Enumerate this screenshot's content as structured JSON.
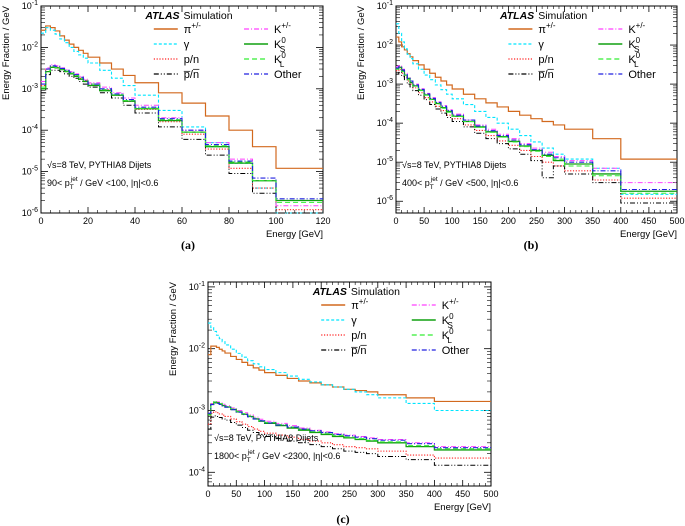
{
  "figure": {
    "y_axis_label": "Energy Fraction / GeV",
    "x_axis_label": "Energy [GeV]",
    "atlas_bold": "ATLAS",
    "atlas_rest": "Simulation",
    "energy_label": "√s=8 TeV, PYTHIA8 Dijets",
    "colors": {
      "pi": "#d2691e",
      "gamma": "#00e5ff",
      "pn": "#ff2020",
      "pnbar": "#000000",
      "kpm": "#ff40ff",
      "ks": "#10a010",
      "kl": "#33ee33",
      "other": "#2020e0"
    },
    "legend": [
      {
        "key": "pi",
        "label": "π+/-",
        "main": "π",
        "sup": "+/-",
        "sub": ""
      },
      {
        "key": "gamma",
        "label": "γ",
        "main": "γ",
        "sup": "",
        "sub": ""
      },
      {
        "key": "pn",
        "label": "p/n",
        "main": "p/n",
        "sup": "",
        "sub": ""
      },
      {
        "key": "pnbar",
        "label": "p̅/n̅",
        "main": "p̅/n̅",
        "sup": "",
        "sub": ""
      },
      {
        "key": "kpm",
        "label": "K+/-",
        "main": "K",
        "sup": "+/-",
        "sub": ""
      },
      {
        "key": "ks",
        "label": "K0S",
        "main": "K",
        "sup": "0",
        "sub": "S"
      },
      {
        "key": "kl",
        "label": "K0L",
        "main": "K",
        "sup": "0",
        "sub": "L"
      },
      {
        "key": "other",
        "label": "Other",
        "main": "Other",
        "sup": "",
        "sub": ""
      }
    ]
  },
  "chart_data": [
    {
      "panel_label": "(a)",
      "type": "line",
      "style": "step",
      "title": "ATLAS Simulation",
      "cut_label": "90< pT jet / GeV <100, |η|<0.6",
      "cut_pre": "90< p",
      "cut_mid": " / GeV <100, |η|<0.6",
      "xlabel": "Energy [GeV]",
      "ylabel": "Energy Fraction / GeV",
      "xlim": [
        0,
        120
      ],
      "ylim": [
        1e-06,
        0.1
      ],
      "yscale": "log",
      "x_ticks": [
        0,
        20,
        40,
        60,
        80,
        100,
        120
      ],
      "y_ticks": [
        -6,
        -5,
        -4,
        -3,
        -2,
        -1
      ],
      "bin_edges": [
        0,
        2,
        4,
        6,
        8,
        10,
        12,
        14,
        16,
        18,
        20,
        25,
        30,
        35,
        40,
        50,
        60,
        70,
        80,
        90,
        100,
        120
      ],
      "series": [
        {
          "key": "pi",
          "name": "π+/-",
          "values": [
            0.026,
            0.033,
            0.03,
            0.025,
            0.019,
            0.015,
            0.012,
            0.01,
            0.0085,
            0.0072,
            0.0058,
            0.0042,
            0.003,
            0.0021,
            0.0014,
            0.0008,
            0.00045,
            0.00022,
            0.0001,
            4e-05,
            1.2e-05
          ]
        },
        {
          "key": "gamma",
          "name": "γ",
          "values": [
            0.022,
            0.03,
            0.026,
            0.021,
            0.016,
            0.013,
            0.01,
            0.008,
            0.0066,
            0.0055,
            0.0042,
            0.0028,
            0.0018,
            0.0012,
            0.0007,
            0.0003,
            0.00012,
            5e-05,
            1.6e-05,
            4e-06,
            9e-07
          ]
        },
        {
          "key": "pn",
          "name": "p/n",
          "values": [
            0.0012,
            0.003,
            0.0035,
            0.0033,
            0.003,
            0.0027,
            0.0024,
            0.0021,
            0.0018,
            0.0016,
            0.0013,
            0.00095,
            0.0007,
            0.0005,
            0.00032,
            0.00016,
            8e-05,
            3.5e-05,
            1.2e-05,
            4e-06,
            1.2e-06
          ]
        },
        {
          "key": "pnbar",
          "name": "p̅/n̅",
          "values": [
            0.0008,
            0.0022,
            0.0028,
            0.0028,
            0.0026,
            0.0023,
            0.002,
            0.0018,
            0.0015,
            0.0013,
            0.0011,
            0.0008,
            0.0006,
            0.0004,
            0.00026,
            0.00012,
            6e-05,
            2.5e-05,
            9e-06,
            3e-06,
            7e-07
          ]
        },
        {
          "key": "kpm",
          "name": "K+/-",
          "values": [
            0.0015,
            0.0032,
            0.0038,
            0.0036,
            0.0032,
            0.0029,
            0.0026,
            0.0023,
            0.002,
            0.0017,
            0.0014,
            0.0011,
            0.0008,
            0.0006,
            0.0004,
            0.0002,
            0.0001,
            5e-05,
            2e-05,
            6e-06,
            1.5e-06
          ]
        },
        {
          "key": "ks",
          "name": "K0S",
          "values": [
            0.001,
            0.0026,
            0.0033,
            0.0032,
            0.0029,
            0.0026,
            0.0023,
            0.002,
            0.0017,
            0.0015,
            0.0012,
            0.0009,
            0.0007,
            0.0005,
            0.00033,
            0.00017,
            9e-05,
            4e-05,
            1.6e-05,
            6e-06,
            2e-06
          ]
        },
        {
          "key": "kl",
          "name": "K0L",
          "values": [
            0.0011,
            0.0027,
            0.0034,
            0.0033,
            0.003,
            0.0027,
            0.0024,
            0.0021,
            0.0018,
            0.0016,
            0.0013,
            0.00095,
            0.00072,
            0.00052,
            0.00034,
            0.00018,
            9e-05,
            4.2e-05,
            1.7e-05,
            6e-06,
            1.8e-06
          ]
        },
        {
          "key": "other",
          "name": "Other",
          "values": [
            0.0013,
            0.003,
            0.0036,
            0.0035,
            0.0031,
            0.0028,
            0.0025,
            0.0022,
            0.0019,
            0.0016,
            0.0013,
            0.001,
            0.00075,
            0.00055,
            0.00036,
            0.00019,
            0.0001,
            4.5e-05,
            1.8e-05,
            7e-06,
            2.2e-06
          ]
        }
      ]
    },
    {
      "panel_label": "(b)",
      "type": "line",
      "style": "step",
      "title": "ATLAS Simulation",
      "cut_label": "400< pT jet / GeV <500, |η|<0.6",
      "cut_pre": "400< p",
      "cut_mid": " / GeV <500, |η|<0.6",
      "xlabel": "Energy [GeV]",
      "ylabel": "Energy Fraction / GeV",
      "xlim": [
        0,
        500
      ],
      "ylim": [
        5e-07,
        0.1
      ],
      "yscale": "log",
      "x_ticks": [
        0,
        50,
        100,
        150,
        200,
        250,
        300,
        350,
        400,
        450,
        500
      ],
      "y_ticks": [
        -6,
        -5,
        -4,
        -3,
        -2,
        -1
      ],
      "bin_edges": [
        0,
        5,
        10,
        15,
        20,
        25,
        30,
        40,
        50,
        60,
        70,
        80,
        90,
        100,
        120,
        140,
        160,
        180,
        200,
        220,
        240,
        260,
        280,
        300,
        350,
        400,
        500
      ],
      "series": [
        {
          "key": "pi",
          "name": "π+/-",
          "values": [
            0.016,
            0.012,
            0.009,
            0.0075,
            0.006,
            0.005,
            0.004,
            0.0031,
            0.0024,
            0.0019,
            0.0015,
            0.0012,
            0.00095,
            0.00075,
            0.00055,
            0.00042,
            0.00033,
            0.00026,
            0.0002,
            0.00016,
            0.00013,
            0.00011,
            9e-05,
            7e-05,
            4e-05,
            1.2e-05
          ]
        },
        {
          "key": "gamma",
          "name": "γ",
          "values": [
            0.035,
            0.02,
            0.012,
            0.008,
            0.0058,
            0.0045,
            0.0033,
            0.0024,
            0.0017,
            0.0013,
            0.00095,
            0.00072,
            0.00055,
            0.00042,
            0.0003,
            0.0002,
            0.00014,
            0.0001,
            7e-05,
            4.8e-05,
            3.3e-05,
            2.3e-05,
            1.6e-05,
            1.2e-05,
            7e-06,
            1.5e-06
          ]
        },
        {
          "key": "pn",
          "name": "p/n",
          "values": [
            0.0022,
            0.0024,
            0.0019,
            0.0015,
            0.0012,
            0.001,
            0.0008,
            0.0006,
            0.00045,
            0.00035,
            0.00027,
            0.00021,
            0.00016,
            0.00013,
            9e-05,
            6.5e-05,
            4.8e-05,
            3.5e-05,
            2.7e-05,
            2e-05,
            1.4e-05,
            1e-05,
            8e-06,
            6e-06,
            3.5e-06,
            1.2e-06
          ]
        },
        {
          "key": "pnbar",
          "name": "p̅/n̅",
          "values": [
            0.0018,
            0.002,
            0.0016,
            0.0013,
            0.001,
            0.00085,
            0.00068,
            0.00052,
            0.0004,
            0.0003,
            0.00023,
            0.00018,
            0.00014,
            0.00011,
            8e-05,
            5.5e-05,
            4e-05,
            3e-05,
            2.2e-05,
            1.6e-05,
            1.1e-05,
            4e-06,
            8e-06,
            5e-06,
            3e-06,
            9e-07
          ]
        },
        {
          "key": "kpm",
          "name": "K+/-",
          "values": [
            0.0028,
            0.003,
            0.0024,
            0.0019,
            0.0015,
            0.0012,
            0.001,
            0.00076,
            0.00058,
            0.00045,
            0.00035,
            0.00028,
            0.00022,
            0.00017,
            0.00012,
            9e-05,
            7e-05,
            5.2e-05,
            4e-05,
            3e-05,
            2.3e-05,
            1.8e-05,
            1.4e-05,
            1.1e-05,
            7e-06,
            3e-06
          ]
        },
        {
          "key": "ks",
          "name": "K0S",
          "values": [
            0.0025,
            0.0027,
            0.0022,
            0.0017,
            0.0014,
            0.0011,
            0.0009,
            0.0007,
            0.00053,
            0.00041,
            0.00032,
            0.00025,
            0.0002,
            0.00015,
            0.00011,
            8e-05,
            6e-05,
            4.5e-05,
            3.4e-05,
            2.6e-05,
            2e-05,
            1.5e-05,
            1.1e-05,
            9e-06,
            5e-06,
            1.8e-06
          ]
        },
        {
          "key": "kl",
          "name": "K0L",
          "values": [
            0.0024,
            0.0026,
            0.0021,
            0.0017,
            0.0013,
            0.0011,
            0.00088,
            0.00068,
            0.00052,
            0.0004,
            0.00031,
            0.00024,
            0.00019,
            0.00015,
            0.00011,
            7.8e-05,
            5.8e-05,
            4.4e-05,
            3.3e-05,
            2.5e-05,
            1.9e-05,
            1.4e-05,
            1.2e-05,
            8e-06,
            4.5e-06,
            1.6e-06
          ]
        },
        {
          "key": "other",
          "name": "Other",
          "values": [
            0.0026,
            0.0028,
            0.0023,
            0.0018,
            0.0014,
            0.0012,
            0.00095,
            0.00073,
            0.00056,
            0.00043,
            0.00034,
            0.00027,
            0.00021,
            0.00016,
            0.00012,
            8.5e-05,
            6.4e-05,
            4.8e-05,
            3.7e-05,
            2.8e-05,
            2.1e-05,
            1.6e-05,
            1.3e-05,
            1e-05,
            6e-06,
            2e-06
          ]
        }
      ]
    },
    {
      "panel_label": "(c)",
      "type": "line",
      "style": "step",
      "title": "ATLAS Simulation",
      "cut_label": "1800< pT jet / GeV <2300, |η|<0.6",
      "cut_pre": "1800< p",
      "cut_mid": " / GeV <2300, |η|<0.6",
      "xlabel": "Energy [GeV]",
      "ylabel": "Energy Fraction / GeV",
      "xlim": [
        0,
        500
      ],
      "ylim": [
        6e-05,
        0.12
      ],
      "yscale": "log",
      "x_ticks": [
        0,
        50,
        100,
        150,
        200,
        250,
        300,
        350,
        400,
        450,
        500
      ],
      "y_ticks": [
        -4,
        -3,
        -2,
        -1
      ],
      "bin_edges": [
        0,
        5,
        10,
        15,
        20,
        25,
        30,
        40,
        50,
        60,
        70,
        80,
        90,
        100,
        120,
        140,
        160,
        180,
        200,
        220,
        240,
        260,
        280,
        300,
        350,
        400,
        500
      ],
      "series": [
        {
          "key": "pi",
          "name": "π+/-",
          "values": [
            0.008,
            0.011,
            0.011,
            0.0105,
            0.0098,
            0.0092,
            0.0085,
            0.0075,
            0.0067,
            0.006,
            0.0054,
            0.0049,
            0.0045,
            0.0041,
            0.0037,
            0.0033,
            0.003,
            0.0028,
            0.0026,
            0.0024,
            0.0022,
            0.0021,
            0.002,
            0.0018,
            0.0016,
            0.0014
          ]
        },
        {
          "key": "gamma",
          "name": "γ",
          "values": [
            0.026,
            0.022,
            0.019,
            0.0165,
            0.0145,
            0.013,
            0.0115,
            0.0098,
            0.0084,
            0.0073,
            0.0064,
            0.0057,
            0.0051,
            0.0046,
            0.0041,
            0.0036,
            0.0032,
            0.0029,
            0.0026,
            0.0024,
            0.0022,
            0.002,
            0.0018,
            0.0016,
            0.0013,
            0.001
          ]
        },
        {
          "key": "pn",
          "name": "p/n",
          "values": [
            0.0006,
            0.0009,
            0.00095,
            0.00092,
            0.00088,
            0.00084,
            0.0008,
            0.00073,
            0.00066,
            0.0006,
            0.00055,
            0.0005,
            0.00046,
            0.00043,
            0.0004,
            0.00037,
            0.00034,
            0.00032,
            0.0003,
            0.00028,
            0.00026,
            0.00025,
            0.00024,
            0.00022,
            0.00019,
            0.00017
          ]
        },
        {
          "key": "pnbar",
          "name": "p̅/n̅",
          "values": [
            0.0005,
            0.00078,
            0.00082,
            0.0008,
            0.00077,
            0.00073,
            0.0007,
            0.00064,
            0.00058,
            0.00053,
            0.00048,
            0.00044,
            0.00041,
            0.00038,
            0.00035,
            0.00032,
            0.0003,
            0.00028,
            0.00026,
            0.00024,
            0.00022,
            0.00021,
            0.0002,
            0.00018,
            0.00016,
            0.00013
          ]
        },
        {
          "key": "kpm",
          "name": "K+/-",
          "values": [
            0.0009,
            0.0013,
            0.0014,
            0.00138,
            0.00132,
            0.00126,
            0.0012,
            0.0011,
            0.001,
            0.00092,
            0.00085,
            0.00078,
            0.00072,
            0.00067,
            0.00062,
            0.00057,
            0.00052,
            0.00048,
            0.00045,
            0.00042,
            0.0004,
            0.00038,
            0.00036,
            0.00034,
            0.0003,
            0.00026
          ]
        },
        {
          "key": "ks",
          "name": "K0S",
          "values": [
            0.00085,
            0.00125,
            0.00135,
            0.00133,
            0.00127,
            0.0012,
            0.00114,
            0.00104,
            0.00095,
            0.00087,
            0.0008,
            0.00073,
            0.00067,
            0.00062,
            0.00057,
            0.00052,
            0.00048,
            0.00044,
            0.00041,
            0.00038,
            0.00036,
            0.00034,
            0.00032,
            0.0003,
            0.00026,
            0.00023
          ]
        },
        {
          "key": "kl",
          "name": "K0L",
          "values": [
            0.00088,
            0.00128,
            0.00138,
            0.00135,
            0.00129,
            0.00122,
            0.00116,
            0.00106,
            0.00097,
            0.00089,
            0.00082,
            0.00075,
            0.00069,
            0.00064,
            0.00059,
            0.00054,
            0.0005,
            0.00046,
            0.00043,
            0.0004,
            0.00037,
            0.00035,
            0.00033,
            0.00031,
            0.00027,
            0.00024
          ]
        },
        {
          "key": "other",
          "name": "Other",
          "values": [
            0.0009,
            0.00125,
            0.00132,
            0.0013,
            0.00125,
            0.00119,
            0.00113,
            0.00103,
            0.00094,
            0.00086,
            0.00079,
            0.00073,
            0.00068,
            0.00063,
            0.00058,
            0.00054,
            0.0005,
            0.00047,
            0.00044,
            0.00041,
            0.00039,
            0.00037,
            0.00035,
            0.00033,
            0.00029,
            0.00025
          ]
        }
      ]
    }
  ]
}
